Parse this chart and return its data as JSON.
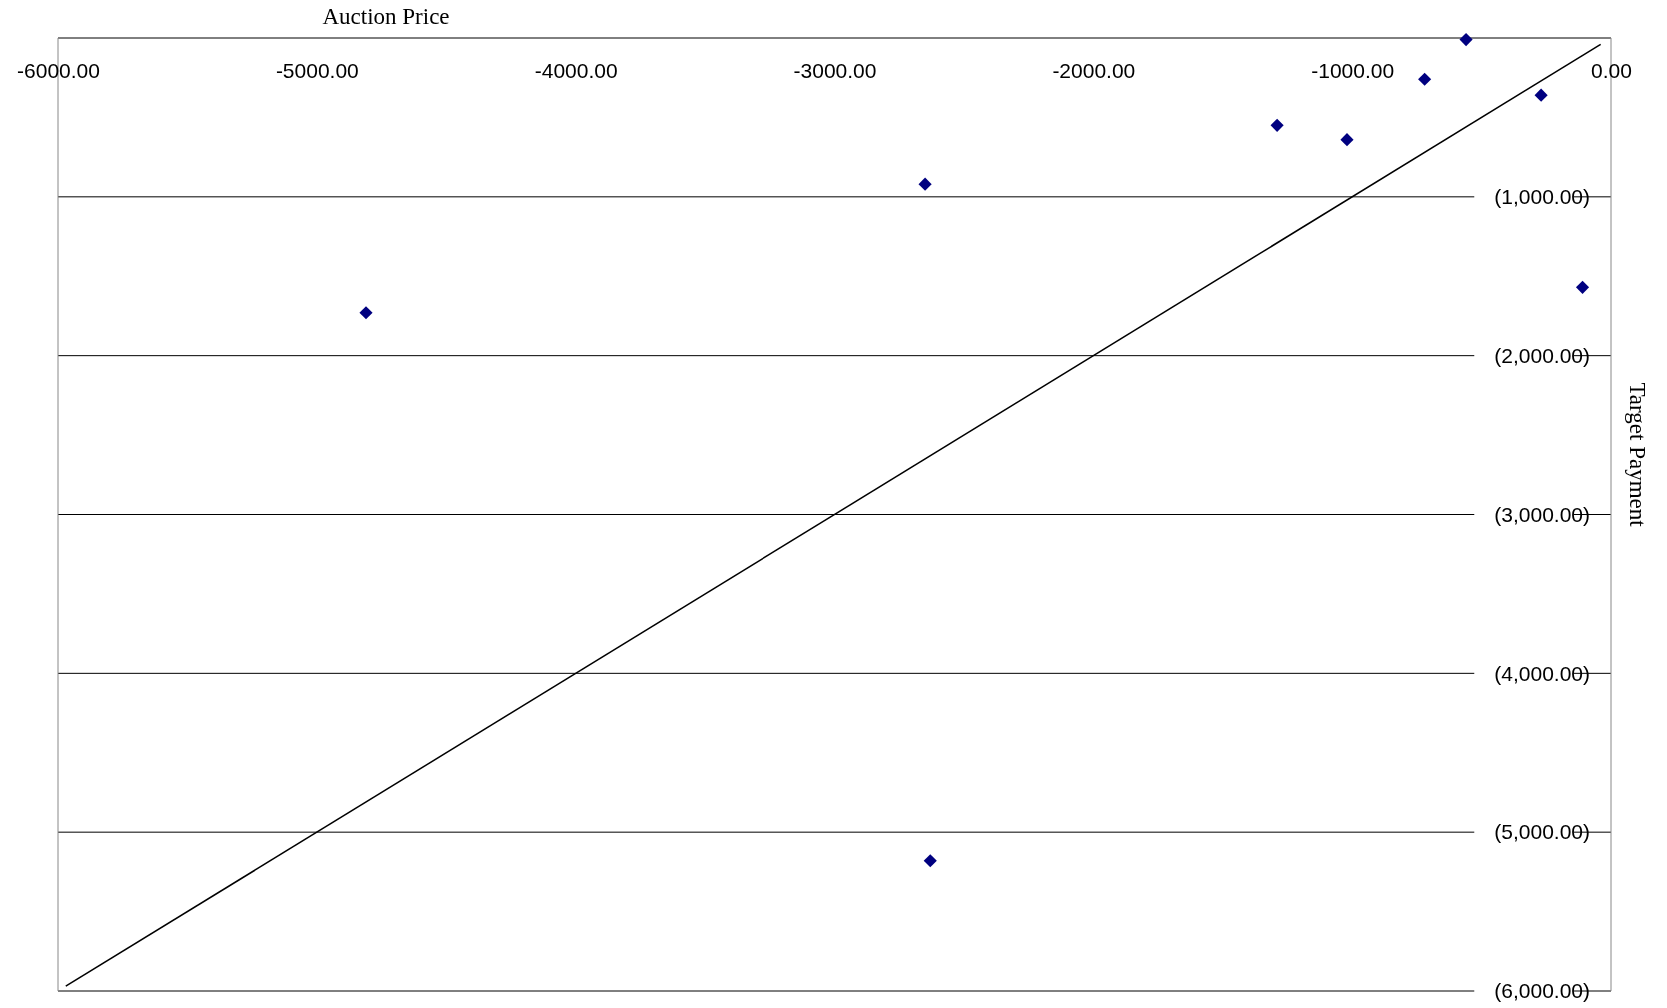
{
  "chart_data": {
    "type": "scatter",
    "xlabel": "Auction Price",
    "ylabel": "Target Payment",
    "xlim": [
      -6000,
      0
    ],
    "ylim": [
      -6000,
      0
    ],
    "xticks": [
      {
        "value": -6000,
        "label": "-6000.00"
      },
      {
        "value": -5000,
        "label": "-5000.00"
      },
      {
        "value": -4000,
        "label": "-4000.00"
      },
      {
        "value": -3000,
        "label": "-3000.00"
      },
      {
        "value": -2000,
        "label": "-2000.00"
      },
      {
        "value": -1000,
        "label": "-1000.00"
      },
      {
        "value": 0,
        "label": "0.00"
      }
    ],
    "yticks": [
      {
        "value": -6000,
        "label": "(6,000.00)"
      },
      {
        "value": -5000,
        "label": "(5,000.00)"
      },
      {
        "value": -4000,
        "label": "(4,000.00)"
      },
      {
        "value": -3000,
        "label": "(3,000.00)"
      },
      {
        "value": -2000,
        "label": "(2,000.00)"
      },
      {
        "value": -1000,
        "label": "(1,000.00)"
      }
    ],
    "grid": "y",
    "series": [
      {
        "marker": "diamond",
        "color": "#000080",
        "x": [
          -4810,
          -2650,
          -2630,
          -1290,
          -1020,
          -720,
          -560,
          -270,
          -110
        ],
        "values": [
          -1730,
          -920,
          -5180,
          -550,
          -640,
          -260,
          -10,
          -360,
          -1570
        ]
      },
      {
        "type": "line",
        "color": "#000000",
        "x": [
          -5970,
          -40
        ],
        "values": [
          -5970,
          -40
        ]
      }
    ]
  }
}
